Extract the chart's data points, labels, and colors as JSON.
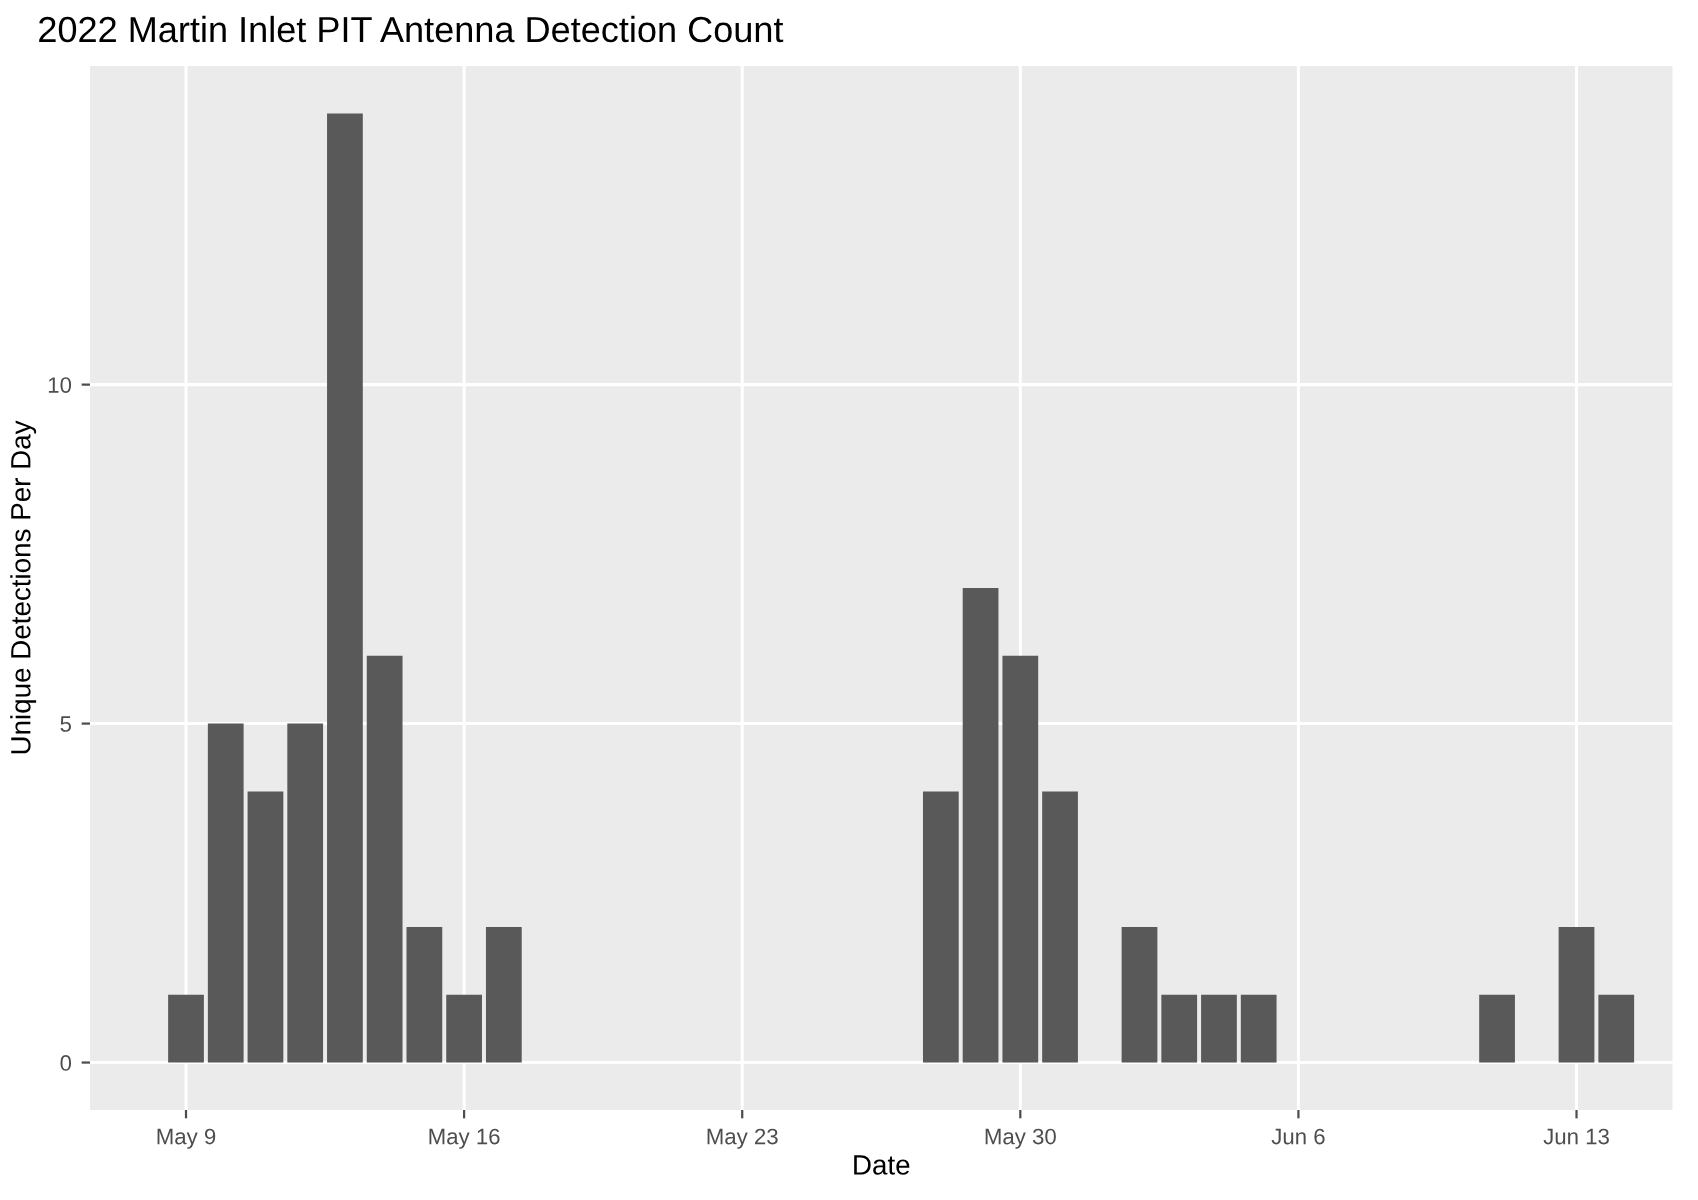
{
  "chart_data": {
    "type": "bar",
    "title": "2022 Martin Inlet PIT Antenna Detection Count",
    "xlabel": "Date",
    "ylabel": "Unique Detections Per Day",
    "x": [
      "2022-05-09",
      "2022-05-10",
      "2022-05-11",
      "2022-05-12",
      "2022-05-13",
      "2022-05-14",
      "2022-05-15",
      "2022-05-16",
      "2022-05-17",
      "2022-05-28",
      "2022-05-29",
      "2022-05-30",
      "2022-05-31",
      "2022-06-02",
      "2022-06-03",
      "2022-06-04",
      "2022-06-05",
      "2022-06-11",
      "2022-06-13",
      "2022-06-14"
    ],
    "values": [
      1,
      5,
      4,
      5,
      14,
      6,
      2,
      1,
      2,
      4,
      7,
      6,
      4,
      2,
      1,
      1,
      1,
      1,
      2,
      1
    ],
    "color": "#595959",
    "xlim": [
      "2022-05-06T14:00",
      "2022-06-15T10:00"
    ],
    "xticks": [
      {
        "value": "2022-05-09",
        "label": "May 9"
      },
      {
        "value": "2022-05-16",
        "label": "May 16"
      },
      {
        "value": "2022-05-23",
        "label": "May 23"
      },
      {
        "value": "2022-05-30",
        "label": "May 30"
      },
      {
        "value": "2022-06-06",
        "label": "Jun 6"
      },
      {
        "value": "2022-06-13",
        "label": "Jun 13"
      }
    ],
    "ylim": [
      -0.7,
      14.7
    ],
    "yticks": [
      0,
      5,
      10
    ],
    "grid": true,
    "legend": false
  }
}
